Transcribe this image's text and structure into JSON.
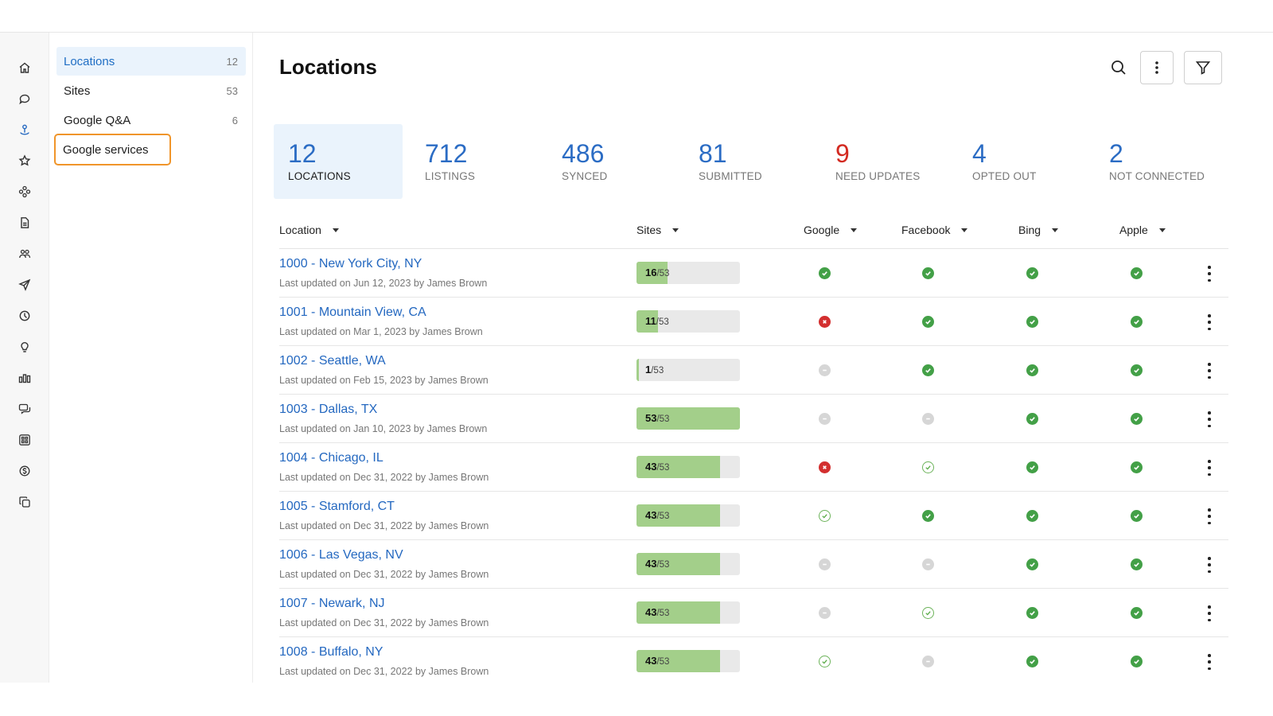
{
  "icon_rail": [
    {
      "name": "home-icon"
    },
    {
      "name": "chat-bubble-icon"
    },
    {
      "name": "map-pin-icon"
    },
    {
      "name": "star-icon"
    },
    {
      "name": "integrations-icon"
    },
    {
      "name": "document-icon"
    },
    {
      "name": "people-icon"
    },
    {
      "name": "send-icon"
    },
    {
      "name": "clock-chart-icon"
    },
    {
      "name": "lightbulb-icon"
    },
    {
      "name": "bar-chart-icon"
    },
    {
      "name": "messages-icon"
    },
    {
      "name": "apps-icon"
    },
    {
      "name": "dollar-icon"
    },
    {
      "name": "copy-icon"
    }
  ],
  "subnav": {
    "items": [
      {
        "label": "Locations",
        "count": "12"
      },
      {
        "label": "Sites",
        "count": "53"
      },
      {
        "label": "Google Q&A",
        "count": "6"
      },
      {
        "label": "Google services",
        "count": ""
      }
    ]
  },
  "header": {
    "title": "Locations"
  },
  "stats": [
    {
      "value": "12",
      "label": "LOCATIONS"
    },
    {
      "value": "712",
      "label": "LISTINGS"
    },
    {
      "value": "486",
      "label": "SYNCED"
    },
    {
      "value": "81",
      "label": "SUBMITTED"
    },
    {
      "value": "9",
      "label": "NEED UPDATES"
    },
    {
      "value": "4",
      "label": "OPTED OUT"
    },
    {
      "value": "2",
      "label": "NOT CONNECTED"
    }
  ],
  "table": {
    "columns": {
      "location": "Location",
      "sites": "Sites",
      "google": "Google",
      "facebook": "Facebook",
      "bing": "Bing",
      "apple": "Apple"
    },
    "sites_total": "/53",
    "rows": [
      {
        "name": "1000 - New York City, NY",
        "updated": "Last updated on Jun 12, 2023 by James Brown",
        "sites": "16",
        "fraction": 0.302,
        "google": "ok",
        "facebook": "ok",
        "bing": "ok",
        "apple": "ok"
      },
      {
        "name": "1001 - Mountain View, CA",
        "updated": "Last updated on Mar 1, 2023 by James Brown",
        "sites": "11",
        "fraction": 0.208,
        "google": "err",
        "facebook": "ok",
        "bing": "ok",
        "apple": "ok"
      },
      {
        "name": "1002 - Seattle, WA",
        "updated": "Last updated on Feb 15, 2023 by James Brown",
        "sites": "1",
        "fraction": 0.019,
        "google": "na",
        "facebook": "ok",
        "bing": "ok",
        "apple": "ok"
      },
      {
        "name": "1003 - Dallas, TX",
        "updated": "Last updated on Jan 10, 2023 by James Brown",
        "sites": "53",
        "fraction": 1.0,
        "google": "na",
        "facebook": "na",
        "bing": "ok",
        "apple": "ok"
      },
      {
        "name": "1004 - Chicago, IL",
        "updated": "Last updated on Dec 31, 2022 by James Brown",
        "sites": "43",
        "fraction": 0.811,
        "google": "err",
        "facebook": "outline",
        "bing": "ok",
        "apple": "ok"
      },
      {
        "name": "1005 - Stamford, CT",
        "updated": "Last updated on Dec 31, 2022 by James Brown",
        "sites": "43",
        "fraction": 0.811,
        "google": "outline",
        "facebook": "ok",
        "bing": "ok",
        "apple": "ok"
      },
      {
        "name": "1006 - Las Vegas, NV",
        "updated": "Last updated on Dec 31, 2022 by James Brown",
        "sites": "43",
        "fraction": 0.811,
        "google": "na",
        "facebook": "na",
        "bing": "ok",
        "apple": "ok"
      },
      {
        "name": "1007 - Newark, NJ",
        "updated": "Last updated on Dec 31, 2022 by James Brown",
        "sites": "43",
        "fraction": 0.811,
        "google": "na",
        "facebook": "outline",
        "bing": "ok",
        "apple": "ok"
      },
      {
        "name": "1008 - Buffalo, NY",
        "updated": "Last updated on Dec 31, 2022 by James Brown",
        "sites": "43",
        "fraction": 0.811,
        "google": "outline",
        "facebook": "na",
        "bing": "ok",
        "apple": "ok"
      }
    ]
  },
  "colors": {
    "accent": "#2468c0",
    "ok": "#43a047",
    "error": "#d32f2f",
    "highlight": "#f0952a"
  }
}
